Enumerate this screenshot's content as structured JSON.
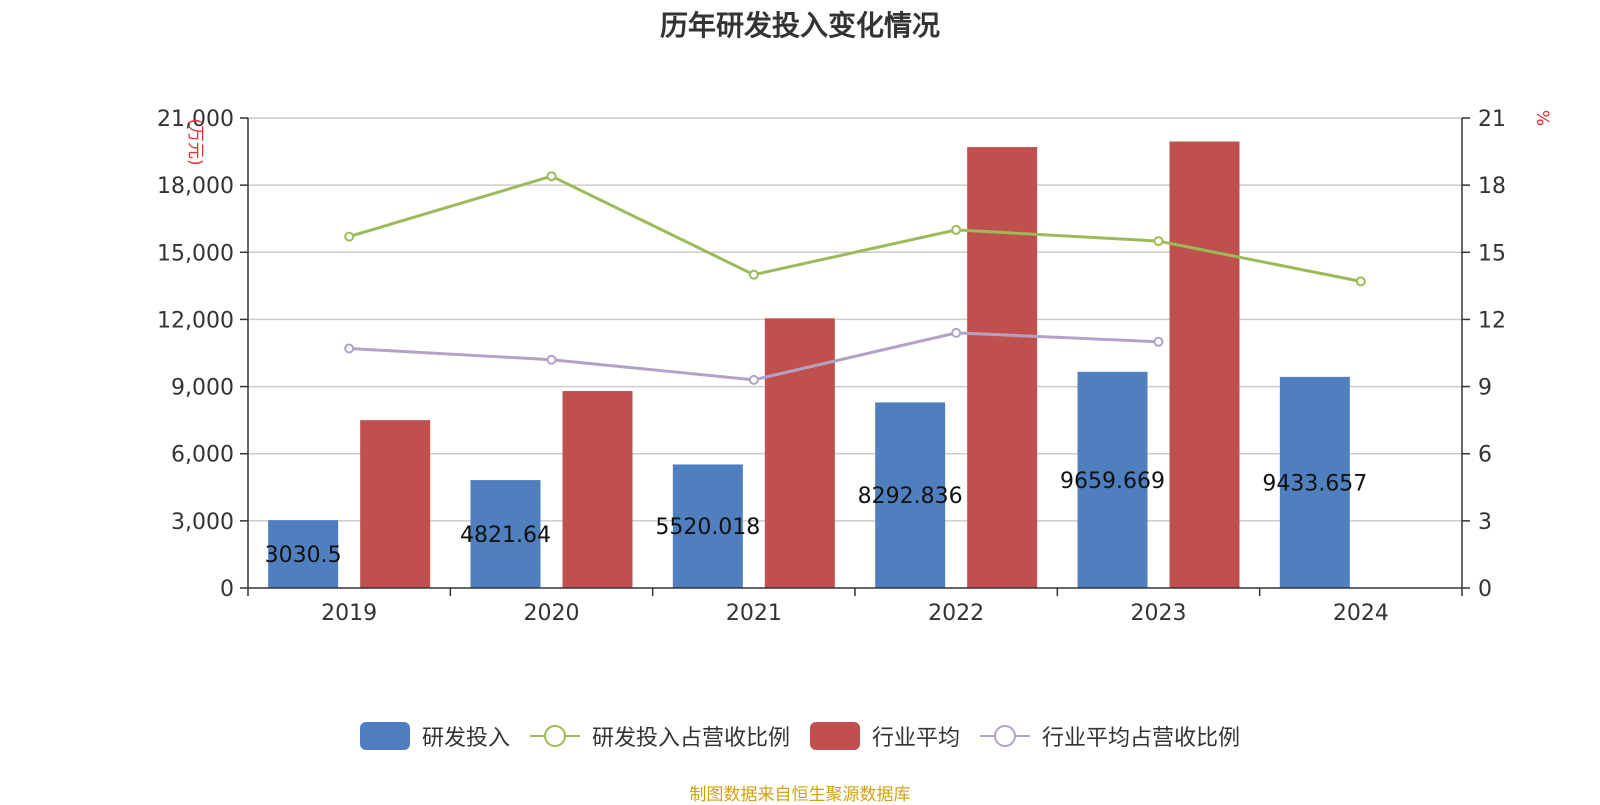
{
  "title": "历年研发投入变化情况",
  "source": "制图数据来自恒生聚源数据库",
  "chart_data": {
    "type": "bar",
    "categories": [
      "2019",
      "2020",
      "2021",
      "2022",
      "2023",
      "2024"
    ],
    "y_left": {
      "unit": "(万元)",
      "min": 0,
      "max": 21000,
      "ticks": [
        "0",
        "3,000",
        "6,000",
        "9,000",
        "12,000",
        "15,000",
        "18,000",
        "21,000"
      ]
    },
    "y_right": {
      "unit": "%",
      "min": 0,
      "max": 21,
      "ticks": [
        "0",
        "3",
        "6",
        "9",
        "12",
        "15",
        "18",
        "21"
      ]
    },
    "grid": true,
    "legend_position": "bottom",
    "series": [
      {
        "name": "研发投入",
        "type": "bar",
        "axis": "left",
        "color": "#4f7fbf",
        "values": [
          3030.5,
          4821.64,
          5520.018,
          8292.836,
          9659.669,
          9433.657
        ],
        "labels": [
          "3030.5",
          "4821.64",
          "5520.018",
          "8292.836",
          "9659.669",
          "9433.657"
        ]
      },
      {
        "name": "研发投入占营收比例",
        "type": "line",
        "axis": "right",
        "color": "#9bbb59",
        "values": [
          15.7,
          18.4,
          14.0,
          16.0,
          15.5,
          13.7
        ]
      },
      {
        "name": "行业平均",
        "type": "bar",
        "axis": "left",
        "color": "#c0504d",
        "values": [
          7500,
          8800,
          12050,
          19700,
          19950,
          null
        ]
      },
      {
        "name": "行业平均占营收比例",
        "type": "line",
        "axis": "right",
        "color": "#b3a2c7",
        "values": [
          10.7,
          10.2,
          9.3,
          11.4,
          11.0,
          null
        ]
      }
    ]
  }
}
